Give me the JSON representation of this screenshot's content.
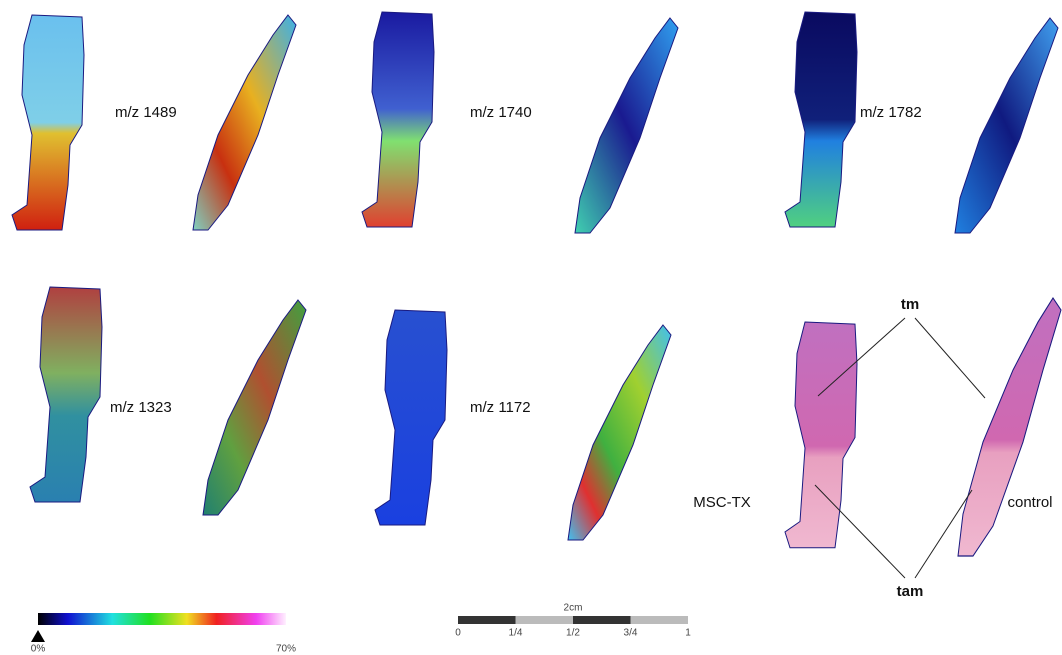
{
  "panels": [
    {
      "label": "m/z 1489"
    },
    {
      "label": "m/z 1740"
    },
    {
      "label": "m/z 1782"
    },
    {
      "label": "m/z 1323"
    },
    {
      "label": "m/z 1172"
    }
  ],
  "histology": {
    "top": "tm",
    "bottom": "tam",
    "left": "MSC-TX",
    "right": "control"
  },
  "colorbar": {
    "min": "0%",
    "max": "70%"
  },
  "scalebar": {
    "title": "2cm",
    "ticks": [
      "0",
      "1/4",
      "1/2",
      "3/4",
      "1"
    ]
  }
}
